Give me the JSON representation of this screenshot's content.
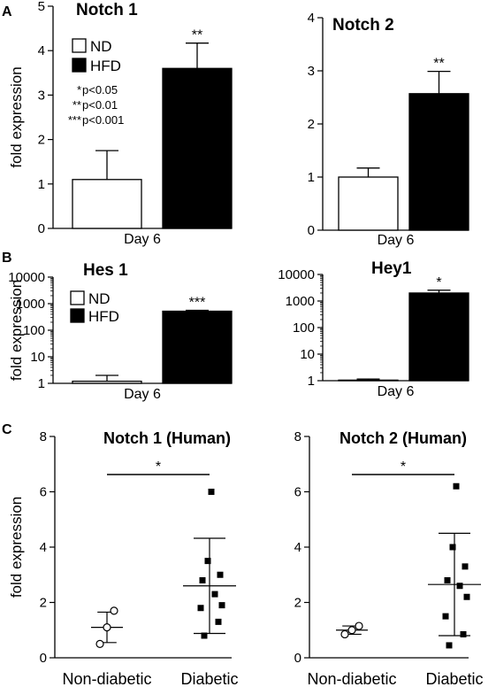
{
  "panels": {
    "a": "A",
    "b": "B",
    "c": "C"
  },
  "colors": {
    "nd": "#ffffff",
    "hfd": "#000000",
    "axis": "#000000"
  },
  "chart_data": [
    {
      "panel": "A",
      "type": "bar",
      "title": "Notch 1",
      "xlabel": "Day 6",
      "ylabel": "fold expression",
      "ylim": [
        0,
        5
      ],
      "yticks": [
        "0",
        "1",
        "2",
        "3",
        "4",
        "5"
      ],
      "categories": [
        "ND",
        "HFD"
      ],
      "values": [
        1.1,
        3.6
      ],
      "errors": [
        0.65,
        0.57
      ],
      "significance": "**",
      "legend": [
        "ND",
        "HFD"
      ],
      "key": [
        "p<0.05",
        "p<0.01",
        "p<0.001"
      ]
    },
    {
      "panel": "A",
      "type": "bar",
      "title": "Notch 2",
      "xlabel": "Day 6",
      "ylabel": "",
      "ylim": [
        0,
        4
      ],
      "yticks": [
        "0",
        "1",
        "2",
        "3",
        "4"
      ],
      "categories": [
        "ND",
        "HFD"
      ],
      "values": [
        1.0,
        2.57
      ],
      "errors": [
        0.17,
        0.42
      ],
      "significance": "**"
    },
    {
      "panel": "B",
      "type": "bar",
      "scale": "log",
      "title": "Hes 1",
      "xlabel": "Day 6",
      "ylabel": "fold expression",
      "ylim": [
        1,
        10000
      ],
      "yticks": [
        "1",
        "10",
        "100",
        "1000",
        "10000"
      ],
      "categories": [
        "ND",
        "HFD"
      ],
      "values": [
        1.2,
        520
      ],
      "errors": [
        0.8,
        40
      ],
      "significance": "***",
      "legend": [
        "ND",
        "HFD"
      ]
    },
    {
      "panel": "B",
      "type": "bar",
      "scale": "log",
      "title": "Hey1",
      "xlabel": "Day 6",
      "ylabel": "",
      "ylim": [
        1,
        10000
      ],
      "yticks": [
        "1",
        "10",
        "100",
        "1000",
        "10000"
      ],
      "categories": [
        "ND",
        "HFD"
      ],
      "values": [
        1.05,
        2000
      ],
      "errors": [
        0.1,
        550
      ],
      "significance": "*"
    },
    {
      "panel": "C",
      "type": "scatter",
      "title": "Notch 1 (Human)",
      "ylabel": "fold expression",
      "ylim": [
        0,
        8
      ],
      "yticks": [
        "0",
        "2",
        "4",
        "6",
        "8"
      ],
      "categories": [
        "Non-diabetic",
        "Diabetic"
      ],
      "groups": [
        {
          "name": "Non-diabetic",
          "points": [
            0.5,
            1.1,
            1.7
          ],
          "mean": 1.1,
          "sd": 0.55
        },
        {
          "name": "Diabetic",
          "points": [
            0.8,
            1.3,
            1.8,
            1.9,
            2.3,
            2.8,
            3.0,
            3.5,
            6.0
          ],
          "mean": 2.6,
          "sd": 1.72
        }
      ],
      "significance": "*"
    },
    {
      "panel": "C",
      "type": "scatter",
      "title": "Notch 2 (Human)",
      "ylabel": "",
      "ylim": [
        0,
        8
      ],
      "yticks": [
        "0",
        "2",
        "4",
        "6",
        "8"
      ],
      "categories": [
        "Non-diabetic",
        "Diabetic"
      ],
      "groups": [
        {
          "name": "Non-diabetic",
          "points": [
            0.85,
            1.0,
            1.15
          ],
          "mean": 1.0,
          "sd": 0.15
        },
        {
          "name": "Diabetic",
          "points": [
            0.45,
            0.85,
            1.5,
            2.2,
            2.6,
            2.8,
            3.3,
            4.0,
            6.2
          ],
          "mean": 2.65,
          "sd": 1.85
        }
      ],
      "significance": "*"
    }
  ]
}
